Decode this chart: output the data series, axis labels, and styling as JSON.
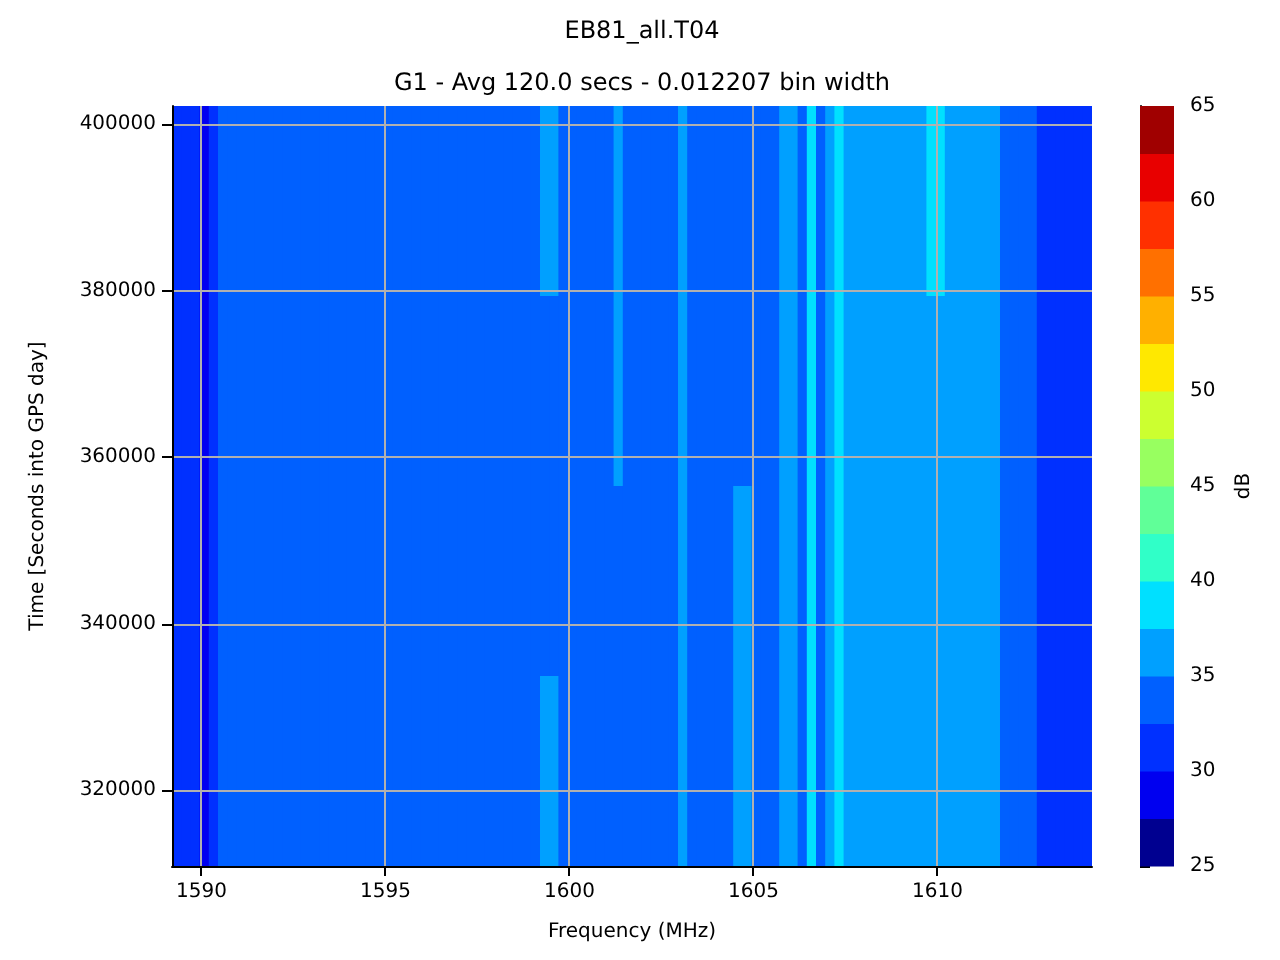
{
  "chart_data": {
    "type": "heatmap",
    "title": "EB81_all.T04",
    "subtitle": "G1 - Avg 120.0 secs - 0.012207 bin width",
    "xlabel": "Frequency (MHz)",
    "ylabel": "Time [Seconds into GPS day]",
    "clabel": "dB",
    "xlim": [
      1589.2,
      1614.2
    ],
    "xticks": [
      1590,
      1595,
      1600,
      1605,
      1610
    ],
    "ylim": [
      310900,
      402200
    ],
    "yticks": [
      320000,
      340000,
      360000,
      380000,
      400000
    ],
    "grid": true,
    "clim": [
      25,
      65
    ],
    "cticks": [
      25,
      30,
      35,
      40,
      45,
      50,
      55,
      60,
      65
    ],
    "colors": [
      "#000090",
      "#0000f0",
      "#0030ff",
      "#0060ff",
      "#00a0ff",
      "#00e0ff",
      "#30ffc8",
      "#60ff98",
      "#98ff60",
      "#ccff30",
      "#ffe800",
      "#ffb000",
      "#ff7000",
      "#ff3000",
      "#e80000",
      "#a00000"
    ],
    "cells": [
      [
        31,
        31,
        31,
        29,
        31,
        34,
        34,
        34,
        34,
        34,
        34,
        34,
        34,
        34,
        34,
        34,
        34,
        34,
        34,
        34,
        34,
        34,
        34,
        34,
        34,
        34,
        34,
        34,
        34,
        34,
        34,
        34,
        34,
        34,
        34,
        34,
        34,
        34,
        34,
        34,
        36,
        36,
        34,
        34,
        34,
        34,
        34,
        34,
        36,
        34,
        34,
        34,
        34,
        34,
        34,
        36,
        34,
        34,
        34,
        34,
        34,
        34,
        34,
        34,
        34,
        34,
        36,
        36,
        34,
        39,
        34,
        36,
        39,
        36,
        36,
        36,
        36,
        36,
        36,
        36,
        36,
        36,
        39,
        39,
        36,
        36,
        36,
        36,
        36,
        36,
        34,
        34,
        34,
        34,
        31,
        31,
        31,
        31,
        31,
        31
      ],
      [
        31,
        31,
        31,
        29,
        31,
        34,
        34,
        34,
        34,
        34,
        34,
        34,
        34,
        34,
        34,
        34,
        34,
        34,
        34,
        34,
        34,
        34,
        34,
        34,
        34,
        34,
        34,
        34,
        34,
        34,
        34,
        34,
        34,
        34,
        34,
        34,
        34,
        34,
        34,
        34,
        34,
        34,
        34,
        34,
        34,
        34,
        34,
        34,
        36,
        34,
        34,
        34,
        34,
        34,
        34,
        36,
        34,
        34,
        34,
        34,
        34,
        34,
        34,
        34,
        34,
        34,
        36,
        36,
        34,
        39,
        34,
        36,
        39,
        36,
        36,
        36,
        36,
        36,
        36,
        36,
        36,
        36,
        36,
        36,
        36,
        36,
        36,
        36,
        36,
        36,
        34,
        34,
        34,
        34,
        31,
        31,
        31,
        31,
        31,
        31
      ],
      [
        31,
        31,
        31,
        29,
        31,
        34,
        34,
        34,
        34,
        34,
        34,
        34,
        34,
        34,
        34,
        34,
        34,
        34,
        34,
        34,
        34,
        34,
        34,
        34,
        34,
        34,
        34,
        34,
        34,
        34,
        34,
        34,
        34,
        34,
        34,
        34,
        34,
        34,
        34,
        34,
        34,
        34,
        34,
        34,
        34,
        34,
        34,
        34,
        34,
        34,
        34,
        34,
        34,
        34,
        34,
        36,
        34,
        34,
        34,
        34,
        34,
        36,
        36,
        34,
        34,
        34,
        36,
        36,
        34,
        39,
        34,
        36,
        39,
        36,
        36,
        36,
        36,
        36,
        36,
        36,
        36,
        36,
        36,
        36,
        36,
        36,
        36,
        36,
        36,
        36,
        34,
        34,
        34,
        34,
        31,
        31,
        31,
        31,
        31,
        31
      ],
      [
        31,
        31,
        31,
        29,
        31,
        34,
        34,
        34,
        34,
        34,
        34,
        34,
        34,
        34,
        34,
        34,
        34,
        34,
        34,
        34,
        34,
        34,
        34,
        34,
        34,
        34,
        34,
        34,
        34,
        34,
        34,
        34,
        34,
        34,
        34,
        34,
        34,
        34,
        34,
        34,
        36,
        36,
        34,
        34,
        34,
        34,
        34,
        34,
        34,
        34,
        34,
        34,
        34,
        34,
        34,
        36,
        34,
        34,
        34,
        34,
        34,
        36,
        36,
        34,
        34,
        34,
        36,
        36,
        34,
        39,
        34,
        36,
        39,
        36,
        36,
        36,
        36,
        36,
        36,
        36,
        36,
        36,
        36,
        36,
        36,
        36,
        36,
        36,
        36,
        36,
        34,
        34,
        34,
        34,
        31,
        31,
        31,
        31,
        31,
        31
      ]
    ]
  }
}
